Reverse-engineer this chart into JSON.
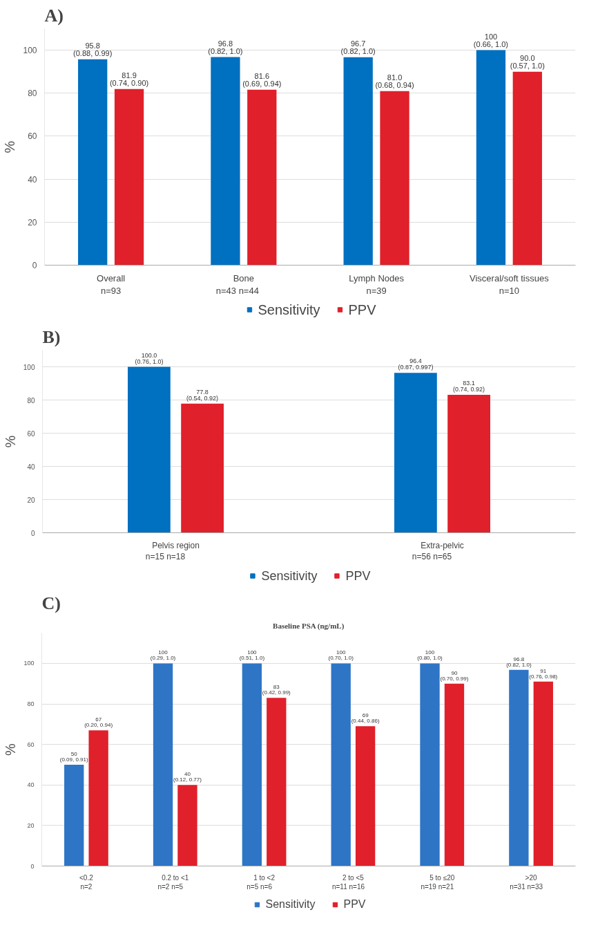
{
  "chart_data": [
    {
      "type": "bar",
      "title": "A)",
      "ylabel": "%",
      "categories": [
        "Overall\nn=93",
        "Bone\nn=43      n=44",
        "Lymph Nodes\nn=39",
        "Visceral/soft tissues\nn=10"
      ],
      "ylim": [
        0,
        110
      ],
      "yticks": [
        0,
        20,
        40,
        60,
        80,
        100
      ],
      "grid": "y",
      "legend": "bottom",
      "series": [
        {
          "name": "Sensitivity",
          "color": "#0070c0",
          "values": [
            95.8,
            96.8,
            96.7,
            100
          ],
          "value_labels": [
            "95.8\n(0.88, 0.99)",
            "96.8\n(0.82, 1.0)",
            "96.7\n(0.82, 1.0)",
            "100\n(0.66, 1.0)"
          ]
        },
        {
          "name": "PPV",
          "color": "#e0202a",
          "values": [
            81.9,
            81.6,
            81.0,
            90.0
          ],
          "value_labels": [
            "81.9\n(0.74, 0.90)",
            "81.6\n(0.69, 0.94)",
            "81.0\n(0.68, 0.94)",
            "90.0\n(0.57, 1.0)"
          ]
        }
      ]
    },
    {
      "type": "bar",
      "title": "B)",
      "ylabel": "%",
      "categories": [
        "Pelvis region\nn=15          n=18",
        "Extra-pelvic\nn=56          n=65"
      ],
      "ylim": [
        0,
        110
      ],
      "yticks": [
        0,
        20,
        40,
        60,
        80,
        100
      ],
      "grid": "y",
      "legend": "bottom",
      "series": [
        {
          "name": "Sensitivity",
          "color": "#0070c0",
          "values": [
            100.0,
            96.4
          ],
          "value_labels": [
            "100.0\n(0.76, 1.0)",
            "96.4\n(0.87, 0.997)"
          ]
        },
        {
          "name": "PPV",
          "color": "#e0202a",
          "values": [
            77.8,
            83.1
          ],
          "value_labels": [
            "77.8\n(0.54, 0.92)",
            "83.1\n(0.74, 0.92)"
          ]
        }
      ]
    },
    {
      "type": "bar",
      "title": "C)",
      "subtitle": "Baseline PSA (ng/mL)",
      "ylabel": "%",
      "categories": [
        "<0.2\nn=2",
        "0.2 to <1\nn=2      n=5",
        "1 to <2\nn=5      n=6",
        "2 to <5\nn=11      n=16",
        "5 to ≤20\nn=19      n=21",
        ">20\nn=31      n=33"
      ],
      "ylim": [
        0,
        115
      ],
      "yticks": [
        0,
        20,
        40,
        60,
        80,
        100
      ],
      "grid": "y",
      "legend": "bottom",
      "series": [
        {
          "name": "Sensitivity",
          "color": "#2e75c6",
          "values": [
            50,
            100,
            100,
            100,
            100,
            96.8
          ],
          "value_labels": [
            "50\n(0.09, 0.91)",
            "100\n(0.29, 1.0)",
            "100\n(0.51, 1.0)",
            "100\n(0.70, 1.0)",
            "100\n(0.80, 1.0)",
            "96.8\n(0.82, 1.0)"
          ]
        },
        {
          "name": "PPV",
          "color": "#e0202a",
          "values": [
            67,
            40,
            83,
            69,
            90,
            91
          ],
          "value_labels": [
            "67\n(0.20, 0.94)",
            "40\n(0.12, 0.77)",
            "83\n(0.42, 0.99)",
            "69\n(0.44, 0.86)",
            "90\n(0.70, 0.99)",
            "91\n(0.76, 0.98)"
          ]
        }
      ]
    }
  ]
}
